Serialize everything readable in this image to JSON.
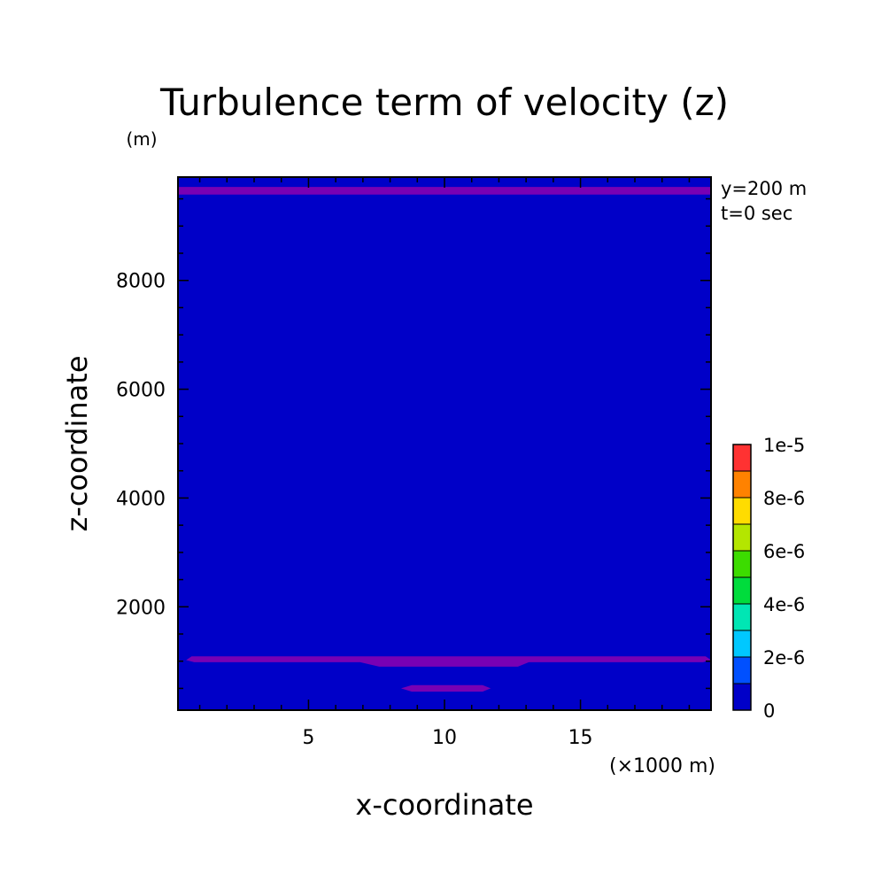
{
  "chart_data": {
    "type": "heatmap",
    "title": "Turbulence term of velocity (z)",
    "unit_label": "(m)",
    "xlabel": "x-coordinate",
    "ylabel": "z-coordinate",
    "x_unit_label": "(×1000 m)",
    "annotations": [
      "y=200 m",
      "t=0 sec"
    ],
    "xlim": [
      0.2,
      19.8
    ],
    "ylim": [
      100,
      9900
    ],
    "x_ticks": [
      5,
      10,
      15
    ],
    "x_tick_labels": [
      "5",
      "10",
      "15"
    ],
    "y_ticks": [
      2000,
      4000,
      6000,
      8000
    ],
    "y_tick_labels": [
      "2000",
      "4000",
      "6000",
      "8000"
    ],
    "grid": false,
    "colorbar": {
      "levels": [
        0,
        1e-06,
        2e-06,
        3e-06,
        4e-06,
        5e-06,
        6e-06,
        7e-06,
        8e-06,
        9e-06,
        1e-05
      ],
      "colors": [
        "#0000c8",
        "#0050ff",
        "#00c8ff",
        "#00e6b4",
        "#00dc3c",
        "#3cdc00",
        "#b4e600",
        "#ffdc00",
        "#ff8200",
        "#ff3232"
      ],
      "tick_labels": [
        "0",
        "2e-6",
        "4e-6",
        "6e-6",
        "8e-6",
        "1e-5"
      ],
      "tick_values": [
        0,
        2e-06,
        4e-06,
        6e-06,
        8e-06,
        1e-05
      ]
    },
    "background_color": "#0000c8",
    "region_color": "#7800b4",
    "regions": [
      {
        "name": "top band",
        "level": "above-0",
        "points": [
          [
            0.2,
            9720
          ],
          [
            19.8,
            9720
          ],
          [
            19.8,
            9580
          ],
          [
            0.2,
            9580
          ]
        ]
      },
      {
        "name": "lower band",
        "level": "above-0",
        "points": [
          [
            0.7,
            1090
          ],
          [
            19.6,
            1090
          ],
          [
            19.8,
            1020
          ],
          [
            19.5,
            980
          ],
          [
            13.1,
            980
          ],
          [
            12.7,
            900
          ],
          [
            7.6,
            900
          ],
          [
            6.9,
            980
          ],
          [
            0.8,
            980
          ],
          [
            0.5,
            1020
          ]
        ]
      },
      {
        "name": "small blob",
        "level": "above-0",
        "points": [
          [
            8.8,
            560
          ],
          [
            11.4,
            560
          ],
          [
            11.7,
            500
          ],
          [
            11.4,
            440
          ],
          [
            8.8,
            440
          ],
          [
            8.4,
            500
          ]
        ]
      }
    ]
  }
}
